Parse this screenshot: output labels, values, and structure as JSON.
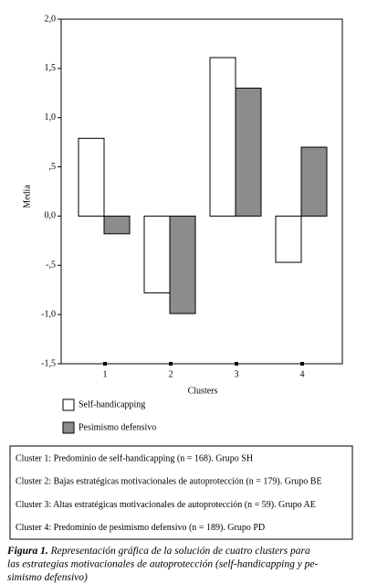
{
  "chart_data": {
    "type": "bar",
    "x_label": "Clusters",
    "y_label": "Media",
    "categories": [
      "1",
      "2",
      "3",
      "4"
    ],
    "series": [
      {
        "name": "Self-handicapping",
        "color": "#ffffff",
        "values": [
          0.79,
          -0.78,
          1.61,
          -0.47
        ]
      },
      {
        "name": "Pesimismo defensivo",
        "color": "#8c8c8c",
        "values": [
          -0.18,
          -0.99,
          1.3,
          0.7
        ]
      }
    ],
    "ylim": [
      -1.5,
      2.0
    ],
    "yticks": [
      {
        "value": -1.5,
        "label": "-1,5"
      },
      {
        "value": -1.0,
        "label": "-1,0"
      },
      {
        "value": -0.5,
        "label": "-,5"
      },
      {
        "value": 0,
        "label": "0,0"
      },
      {
        "value": 0.5,
        "label": ",5"
      },
      {
        "value": 1.0,
        "label": "1,0"
      },
      {
        "value": 1.5,
        "label": "1,5"
      },
      {
        "value": 2.0,
        "label": "2,0"
      }
    ]
  },
  "notes": [
    "Cluster 1: Predominio de self-handicapping (n = 168). Grupo SH",
    "Cluster 2: Bajas estratégicas motivacionales de autoprotección (n = 179). Grupo BE",
    "Cluster 3: Altas estratégicas motivacionales de autoprotección (n = 59). Grupo AE",
    "Cluster 4: Predominio de pesimismo defensivo (n = 189). Grupo PD"
  ],
  "caption": {
    "label": "Figura 1.",
    "lines": [
      "Representación gráfica de la solución de cuatro clusters para",
      "las estrategias motivacionales de autoprotección (self-handicapping y pe-",
      "simismo defensivo)"
    ]
  }
}
